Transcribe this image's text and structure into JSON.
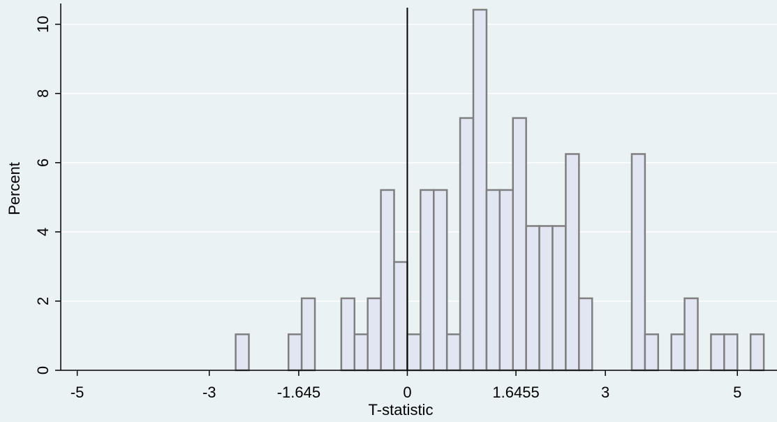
{
  "chart_data": {
    "type": "bar",
    "xlabel": "T-statistic",
    "ylabel": "Percent",
    "xlim": [
      -5.25,
      5.6
    ],
    "ylim": [
      0,
      10.6
    ],
    "grid": true,
    "x_ticks": [
      {
        "value": -5,
        "label": "-5"
      },
      {
        "value": -3,
        "label": "-3"
      },
      {
        "value": -1.645,
        "label": "-1.645"
      },
      {
        "value": 0,
        "label": "0"
      },
      {
        "value": 1.6455,
        "label": "1.6455"
      },
      {
        "value": 3,
        "label": "3"
      },
      {
        "value": 5,
        "label": "5"
      }
    ],
    "y_ticks": [
      {
        "value": 0,
        "label": "0"
      },
      {
        "value": 2,
        "label": "2"
      },
      {
        "value": 4,
        "label": "4"
      },
      {
        "value": 6,
        "label": "6"
      },
      {
        "value": 8,
        "label": "8"
      },
      {
        "value": 10,
        "label": "10"
      }
    ],
    "reference_line_x": 0,
    "bins": [
      {
        "start": -2.6,
        "end": -2.4,
        "value": 1.04
      },
      {
        "start": -1.8,
        "end": -1.6,
        "value": 1.04
      },
      {
        "start": -1.6,
        "end": -1.4,
        "value": 2.08
      },
      {
        "start": -1.0,
        "end": -0.8,
        "value": 2.08
      },
      {
        "start": -0.8,
        "end": -0.6,
        "value": 1.04
      },
      {
        "start": -0.6,
        "end": -0.4,
        "value": 2.08
      },
      {
        "start": -0.4,
        "end": -0.2,
        "value": 5.21
      },
      {
        "start": -0.2,
        "end": 0.0,
        "value": 3.13
      },
      {
        "start": 0.0,
        "end": 0.2,
        "value": 1.04
      },
      {
        "start": 0.2,
        "end": 0.4,
        "value": 5.21
      },
      {
        "start": 0.4,
        "end": 0.6,
        "value": 5.21
      },
      {
        "start": 0.6,
        "end": 0.8,
        "value": 1.04
      },
      {
        "start": 0.8,
        "end": 1.0,
        "value": 7.29
      },
      {
        "start": 1.0,
        "end": 1.2,
        "value": 10.42
      },
      {
        "start": 1.2,
        "end": 1.4,
        "value": 5.21
      },
      {
        "start": 1.4,
        "end": 1.6,
        "value": 5.21
      },
      {
        "start": 1.6,
        "end": 1.8,
        "value": 7.29
      },
      {
        "start": 1.8,
        "end": 2.0,
        "value": 4.17
      },
      {
        "start": 2.0,
        "end": 2.2,
        "value": 4.17
      },
      {
        "start": 2.2,
        "end": 2.4,
        "value": 4.17
      },
      {
        "start": 2.4,
        "end": 2.6,
        "value": 6.25
      },
      {
        "start": 2.6,
        "end": 2.8,
        "value": 2.08
      },
      {
        "start": 3.4,
        "end": 3.6,
        "value": 6.25
      },
      {
        "start": 3.6,
        "end": 3.8,
        "value": 1.04
      },
      {
        "start": 4.0,
        "end": 4.2,
        "value": 1.04
      },
      {
        "start": 4.2,
        "end": 4.4,
        "value": 2.08
      },
      {
        "start": 4.6,
        "end": 4.8,
        "value": 1.04
      },
      {
        "start": 4.8,
        "end": 5.0,
        "value": 1.04
      },
      {
        "start": 5.2,
        "end": 5.4,
        "value": 1.04
      }
    ],
    "colors": {
      "background": "#eaf2f3",
      "bar_fill": "#e2e6f3",
      "bar_stroke": "#7f7f7f",
      "grid": "#ffffff",
      "axis": "#000000",
      "reference_line": "#000000"
    }
  }
}
